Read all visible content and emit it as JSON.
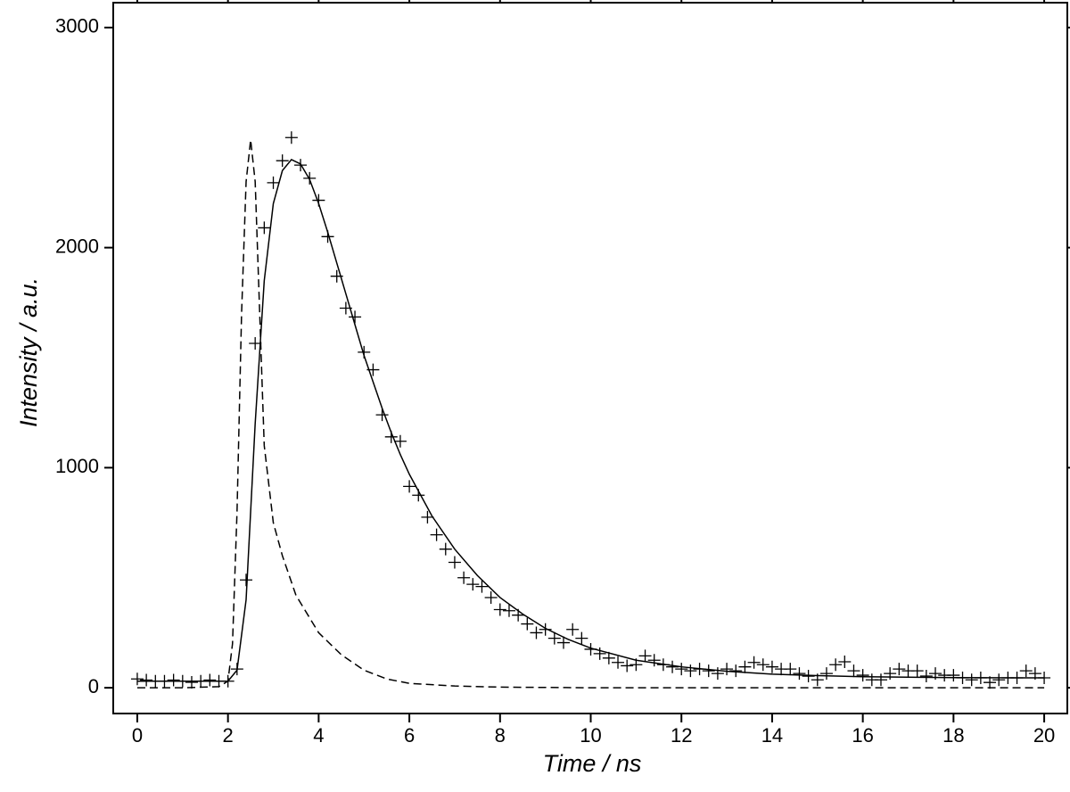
{
  "chart_data": {
    "type": "scatter-line",
    "x_label": "Time / ns",
    "y_label": "Intensity / a.u.",
    "xlim": [
      -0.53,
      20.51
    ],
    "ylim": [
      -117,
      3113
    ],
    "xticks": [
      0,
      2,
      4,
      6,
      8,
      10,
      12,
      14,
      16,
      18,
      20
    ],
    "yticks": [
      0,
      1000,
      2000,
      3000
    ],
    "grid": false,
    "series": [
      {
        "style": "markers",
        "color": "#000000",
        "x": [
          0,
          0.2,
          0.4,
          0.6,
          0.8,
          1,
          1.2,
          1.4,
          1.6,
          1.8,
          2,
          2.2,
          2.4,
          2.6,
          2.8,
          3,
          3.2,
          3.4,
          3.6,
          3.8,
          4,
          4.2,
          4.4,
          4.6,
          4.8,
          5,
          5.2,
          5.4,
          5.6,
          5.8,
          6,
          6.2,
          6.4,
          6.6,
          6.8,
          7,
          7.2,
          7.4,
          7.6,
          7.8,
          8,
          8.2,
          8.4,
          8.6,
          8.8,
          9,
          9.2,
          9.4,
          9.6,
          9.8,
          10,
          10.2,
          10.4,
          10.6,
          10.8,
          11,
          11.2,
          11.4,
          11.6,
          11.8,
          12,
          12.2,
          12.4,
          12.6,
          12.8,
          13,
          13.2,
          13.4,
          13.6,
          13.8,
          14,
          14.2,
          14.4,
          14.6,
          14.8,
          15,
          15.2,
          15.4,
          15.6,
          15.8,
          16,
          16.2,
          16.4,
          16.6,
          16.8,
          17,
          17.2,
          17.4,
          17.6,
          17.8,
          18,
          18.2,
          18.4,
          18.6,
          18.8,
          19,
          19.2,
          19.4,
          19.6,
          19.8,
          20
        ],
        "values": [
          40,
          35,
          30,
          30,
          35,
          30,
          25,
          30,
          35,
          30,
          30,
          85,
          490,
          1565,
          2090,
          2295,
          2395,
          2500,
          2375,
          2315,
          2215,
          2050,
          1870,
          1725,
          1685,
          1525,
          1445,
          1240,
          1140,
          1120,
          915,
          875,
          775,
          695,
          630,
          570,
          500,
          470,
          460,
          410,
          355,
          350,
          330,
          290,
          250,
          265,
          225,
          205,
          265,
          225,
          175,
          155,
          135,
          115,
          100,
          105,
          145,
          125,
          105,
          95,
          85,
          77,
          85,
          77,
          65,
          85,
          77,
          95,
          115,
          105,
          95,
          85,
          85,
          65,
          53,
          36,
          65,
          105,
          118,
          77,
          57,
          36,
          36,
          65,
          85,
          77,
          77,
          53,
          65,
          57,
          57,
          45,
          36,
          45,
          24,
          36,
          45,
          45,
          77,
          65,
          45
        ]
      },
      {
        "style": "solid",
        "color": "#000000",
        "x": [
          0,
          1,
          2,
          2.2,
          2.4,
          2.6,
          2.8,
          3,
          3.2,
          3.4,
          3.6,
          3.8,
          4,
          4.2,
          4.4,
          4.6,
          4.8,
          5,
          5.2,
          5.4,
          5.6,
          5.8,
          6,
          6.5,
          7,
          7.5,
          8,
          8.5,
          9,
          9.5,
          10,
          11,
          12,
          13,
          14,
          15,
          16,
          18,
          20
        ],
        "values": [
          30,
          30,
          30,
          80,
          400,
          1200,
          1850,
          2200,
          2350,
          2400,
          2380,
          2310,
          2200,
          2070,
          1930,
          1790,
          1650,
          1510,
          1390,
          1270,
          1160,
          1060,
          970,
          780,
          630,
          510,
          410,
          335,
          270,
          220,
          180,
          125,
          95,
          75,
          62,
          55,
          50,
          46,
          45
        ]
      },
      {
        "style": "dashed",
        "color": "#000000",
        "x": [
          0,
          1,
          1.8,
          2,
          2.1,
          2.2,
          2.3,
          2.4,
          2.5,
          2.6,
          2.7,
          2.8,
          3,
          3.2,
          3.5,
          4,
          4.5,
          5,
          5.5,
          6,
          7,
          8,
          10,
          20
        ],
        "values": [
          0,
          0,
          5,
          30,
          200,
          800,
          1700,
          2300,
          2490,
          2300,
          1700,
          1100,
          750,
          600,
          420,
          250,
          150,
          80,
          40,
          20,
          8,
          3,
          0,
          0
        ]
      }
    ]
  }
}
